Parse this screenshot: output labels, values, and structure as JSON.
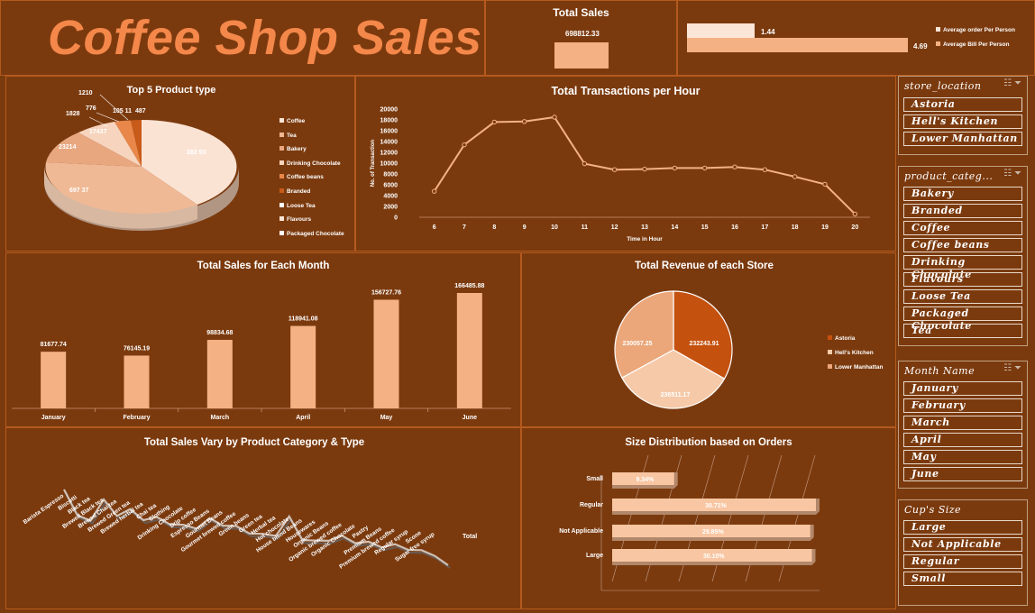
{
  "dashboard_title": "Coffee Shop Sales",
  "total_sales": {
    "title": "Total Sales",
    "value": "698812.33"
  },
  "averages": {
    "legend_order": "Average order Per Person",
    "legend_bill": "Average Bill Per Person",
    "order_value": "1.44",
    "bill_value": "4.69"
  },
  "top5": {
    "title": "Top 5 Product type",
    "labels": [
      "1210",
      "776",
      "1828",
      "105 11",
      "487",
      "17437",
      "23214",
      "282 93",
      "697 37"
    ],
    "legend": [
      "Coffee",
      "Tea",
      "Bakery",
      "Drinking Chocolate",
      "Coffee beans",
      "Branded",
      "Loose Tea",
      "Flavours",
      "Packaged Chocolate"
    ]
  },
  "chart_data": [
    {
      "type": "line",
      "title": "Total Transactions per Hour",
      "xlabel": "Time in Hour",
      "ylabel": "No. of Transaction",
      "x": [
        6,
        7,
        8,
        9,
        10,
        11,
        12,
        13,
        14,
        15,
        16,
        17,
        18,
        19,
        20
      ],
      "values": [
        4800,
        13400,
        17600,
        17700,
        18500,
        9900,
        8800,
        8900,
        9100,
        9100,
        9300,
        8800,
        7500,
        6100,
        600
      ],
      "y_ticks": [
        "0",
        "2000",
        "4000",
        "6000",
        "8000",
        "10000",
        "12000",
        "14000",
        "16000",
        "18000",
        "20000"
      ],
      "ylim": [
        0,
        20000
      ]
    },
    {
      "type": "bar",
      "title": "Total Sales for Each Month",
      "categories": [
        "January",
        "February",
        "March",
        "April",
        "May",
        "June"
      ],
      "values": [
        81677.74,
        76145.19,
        98834.68,
        118941.08,
        156727.76,
        166485.88
      ],
      "labels": [
        "81677.74",
        "76145.19",
        "98834.68",
        "118941.08",
        "156727.76",
        "166485.88"
      ]
    },
    {
      "type": "pie",
      "title": "Total Revenue of each Store",
      "categories": [
        "Astoria",
        "Hell's Kitchen",
        "Lower Manhattan"
      ],
      "values": [
        232243.91,
        236511.17,
        230057.25
      ],
      "labels": [
        "232243.91",
        "236511.17",
        "230057.25"
      ],
      "colors": [
        "#c5510f",
        "#f6c9a8",
        "#eba77a"
      ]
    },
    {
      "type": "line",
      "title": "Total Sales Vary by Product Category & Type",
      "categories": [
        "Barista Espresso",
        "Biscotti",
        "Black tea",
        "Brewed Black tea",
        "Brewed Chai tea",
        "Brewed Green tea",
        "Brewed herbal tea",
        "Chai tea",
        "Clothing",
        "Drinking Chocolate",
        "Drip coffee",
        "Espresso Beans",
        "Gourmet Beans",
        "Gourmet brewed coffee",
        "Green beans",
        "Green tea",
        "Herbal tea",
        "Hot chocolate",
        "House blend Beans",
        "Housewares",
        "Organic Beans",
        "Organic brewed coffee",
        "Organic Chocolate",
        "Pastry",
        "Premium Beans",
        "Premium brewed coffee",
        "Regular syrup",
        "Scone",
        "Sugar free syrup",
        "Total"
      ]
    },
    {
      "type": "bar",
      "title": "Size Distribution based on Orders",
      "categories": [
        "Small",
        "Regular",
        "Not Applicable",
        "Large"
      ],
      "values": [
        9.34,
        30.71,
        29.85,
        30.1
      ],
      "labels": [
        "9.34%",
        "30.71%",
        "29.85%",
        "30.10%"
      ]
    }
  ],
  "slicers": {
    "store": {
      "title": "store_location",
      "items": [
        "Astoria",
        "Hell's Kitchen",
        "Lower Manhattan"
      ]
    },
    "category": {
      "title": "product_categ...",
      "items": [
        "Bakery",
        "Branded",
        "Coffee",
        "Coffee beans",
        "Drinking Chocolate",
        "Flavours",
        "Loose Tea",
        "Packaged Chocolate",
        "Tea"
      ]
    },
    "month": {
      "title": "Month Name",
      "items": [
        "January",
        "February",
        "March",
        "April",
        "May",
        "June"
      ]
    },
    "size": {
      "title": "Cup's Size",
      "items": [
        "Large",
        "Not Applicable",
        "Regular",
        "Small"
      ]
    }
  },
  "colors": {
    "background": "#7b3a0e",
    "accent": "#f4874a",
    "bar": "#f4b183"
  }
}
